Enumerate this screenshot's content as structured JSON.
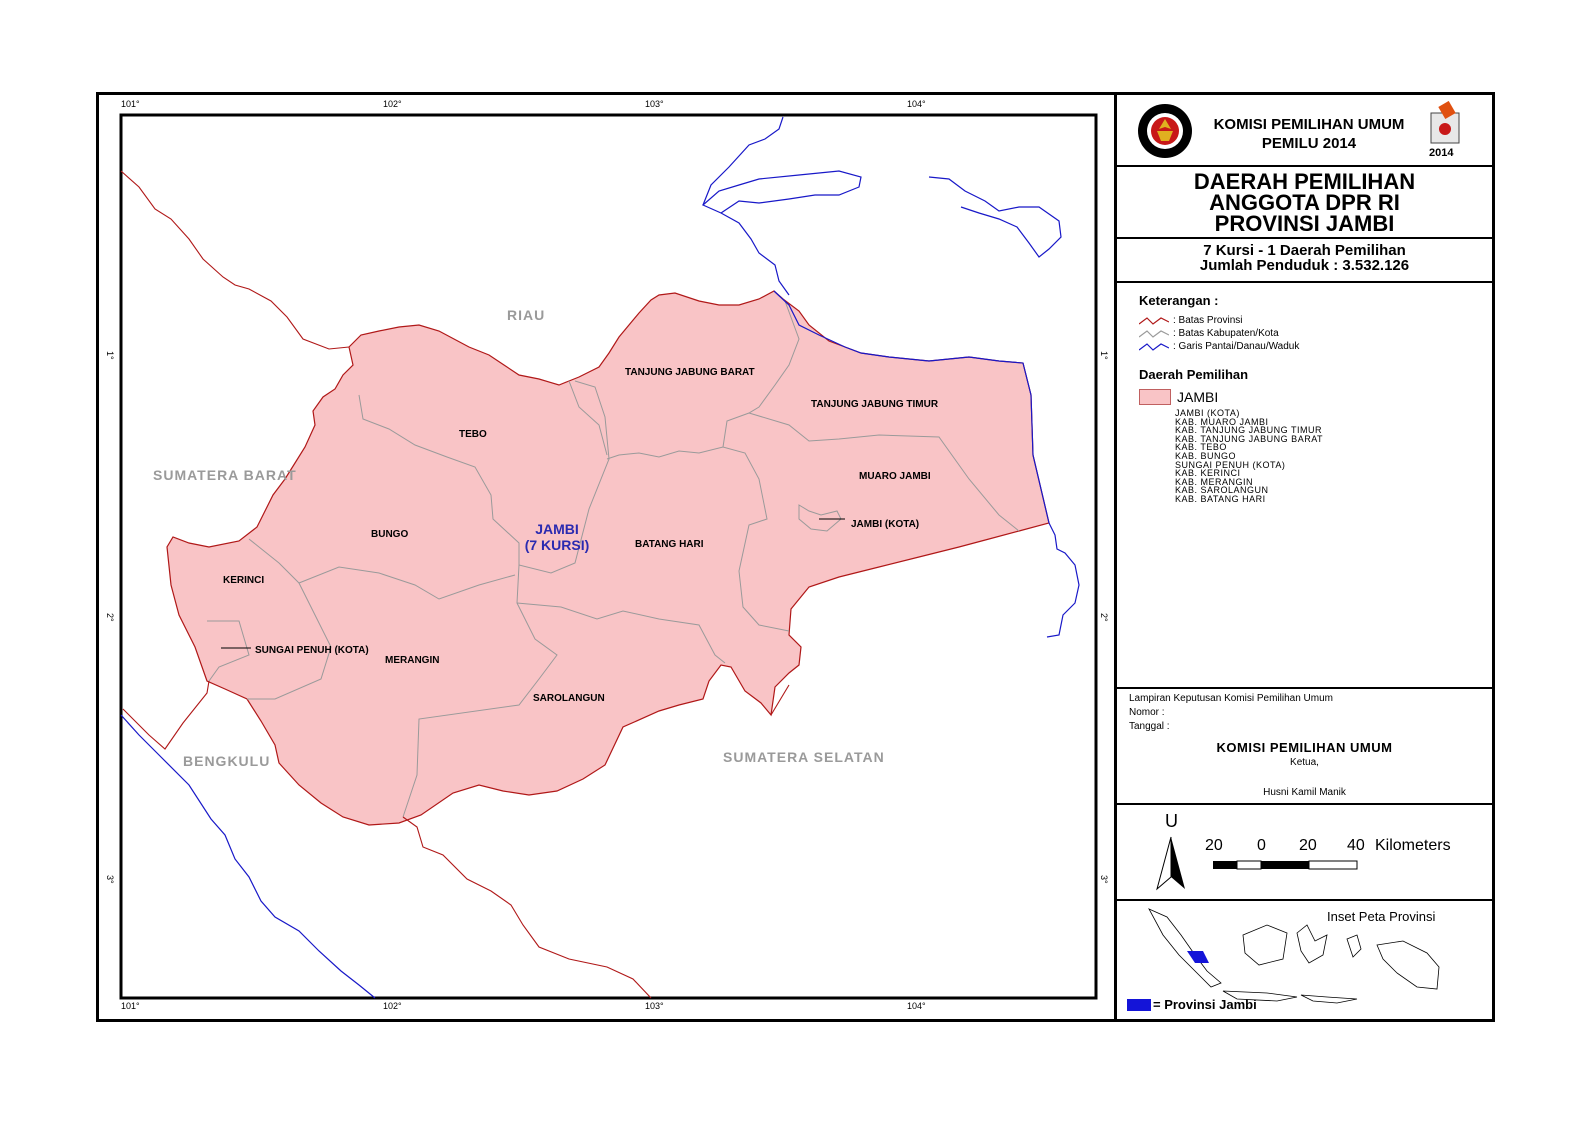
{
  "header": {
    "agency_line1": "KOMISI PEMILIHAN UMUM",
    "agency_line2": "PEMILU 2014",
    "logo_year": "2014",
    "kpu_logo_text": "KOMISI PEMILIHAN UMUM"
  },
  "title": {
    "line1": "DAERAH PEMILIHAN",
    "line2": "ANGGOTA DPR RI",
    "line3": "PROVINSI JAMBI"
  },
  "stats": {
    "line1": "7 Kursi - 1 Daerah Pemilihan",
    "line2": "Jumlah Penduduk : 3.532.126"
  },
  "legend": {
    "title": "Keterangan :",
    "items": [
      {
        "label": ": Batas Provinsi",
        "color": "#b01818"
      },
      {
        "label": ": Batas Kabupaten/Kota",
        "color": "#9a9a9a"
      },
      {
        "label": ": Garis Pantai/Danau/Waduk",
        "color": "#1818c8"
      }
    ],
    "dp_title": "Daerah Pemilihan",
    "dp_name": "JAMBI",
    "dp_color": "#f9c4c6",
    "dp_members": [
      "JAMBI (KOTA)",
      "KAB. MUARO JAMBI",
      "KAB. TANJUNG JABUNG TIMUR",
      "KAB. TANJUNG JABUNG BARAT",
      "KAB. TEBO",
      "KAB. BUNGO",
      "SUNGAI PENUH (KOTA)",
      "KAB. KERINCI",
      "KAB. MERANGIN",
      "KAB. SAROLANGUN",
      "KAB. BATANG HARI"
    ]
  },
  "attachment": {
    "line1": "Lampiran Keputusan Komisi Pemilihan Umum",
    "line2": "Nomor    :",
    "line3": "Tanggal :",
    "org": "KOMISI PEMILIHAN UMUM",
    "position": "Ketua,",
    "name": "Husni Kamil Manik"
  },
  "scale": {
    "north": "U",
    "labels": [
      "20",
      "0",
      "20",
      "40"
    ],
    "unit": "Kilometers"
  },
  "inset": {
    "title": "Inset Peta Provinsi",
    "legend": "= Provinsi Jambi",
    "highlight_color": "#1414d8"
  },
  "map": {
    "lon_ticks": [
      "101°",
      "102°",
      "103°",
      "104°"
    ],
    "lat_ticks": [
      "1°",
      "2°",
      "3°"
    ],
    "regencies": [
      "TANJUNG JABUNG BARAT",
      "TANJUNG JABUNG TIMUR",
      "TEBO",
      "MUARO JAMBI",
      "BUNGO",
      "JAMBI (KOTA)",
      "BATANG HARI",
      "KERINCI",
      "SUNGAI PENUH (KOTA)",
      "MERANGIN",
      "SAROLANGUN"
    ],
    "provinces": [
      "RIAU",
      "SUMATERA BARAT",
      "BENGKULU",
      "SUMATERA SELATAN"
    ],
    "dp_label_line1": "JAMBI",
    "dp_label_line2": "(7 KURSI)"
  }
}
